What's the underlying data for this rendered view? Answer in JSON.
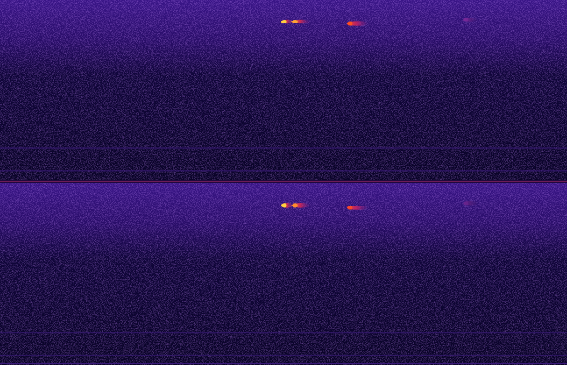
{
  "chart_data": {
    "type": "spectrogram",
    "tick_labels": false,
    "xlim": [
      0,
      100
    ],
    "ylim": [
      0,
      100
    ],
    "zlim": [
      0,
      1
    ],
    "channels": [
      {
        "x": [
          50,
          51.9,
          61.6,
          82.1
        ],
        "duration": [
          1.4,
          2.4,
          3.0,
          1.8
        ],
        "y": [
          88,
          88,
          87,
          89
        ],
        "values": [
          1,
          0.95,
          0.85,
          0.35
        ]
      },
      {
        "x": [
          50,
          51.9,
          61.6,
          82.1
        ],
        "duration": [
          1.4,
          2.4,
          3.0,
          1.8
        ],
        "y": [
          87.6,
          87.6,
          86.4,
          88.8
        ],
        "values": [
          1,
          0.92,
          0.82,
          0.3
        ]
      }
    ]
  }
}
